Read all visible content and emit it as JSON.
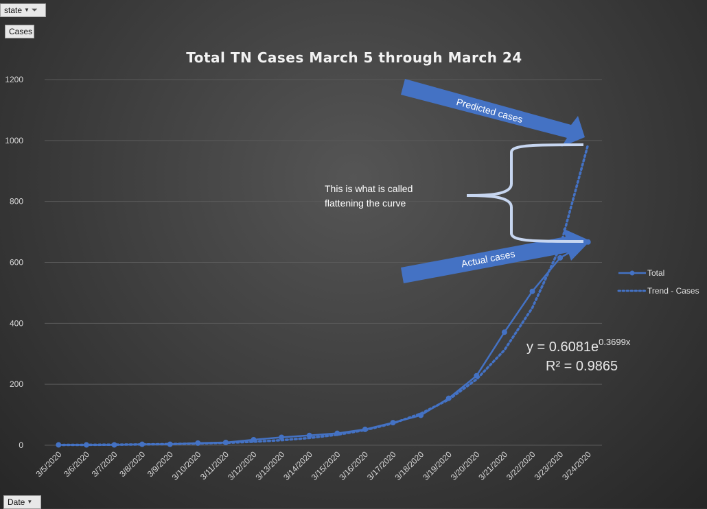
{
  "filters": {
    "state_label": "state",
    "cases_label": "Cases",
    "date_label": "Date"
  },
  "colors": {
    "series": "#4472c4",
    "arrow": "#4472c4",
    "grid": "#5a5a5a"
  },
  "chart_data": {
    "type": "line",
    "title": "Total TN Cases March 5 through March 24",
    "xlabel": "",
    "ylabel": "",
    "categories": [
      "3/5/2020",
      "3/6/2020",
      "3/7/2020",
      "3/8/2020",
      "3/9/2020",
      "3/10/2020",
      "3/11/2020",
      "3/12/2020",
      "3/13/2020",
      "3/14/2020",
      "3/15/2020",
      "3/16/2020",
      "3/17/2020",
      "3/18/2020",
      "3/19/2020",
      "3/20/2020",
      "3/21/2020",
      "3/22/2020",
      "3/23/2020",
      "3/24/2020"
    ],
    "ylim": [
      0,
      1200
    ],
    "yticks": [
      0,
      200,
      400,
      600,
      800,
      1000,
      1200
    ],
    "grid": true,
    "legend_position": "right",
    "series": [
      {
        "name": "Total",
        "style": "solid-markers",
        "values": [
          1,
          1,
          1,
          3,
          3,
          7,
          9,
          18,
          26,
          32,
          39,
          52,
          74,
          98,
          154,
          228,
          371,
          505,
          615,
          667
        ]
      },
      {
        "name": "Trend - Cases",
        "style": "dotted",
        "values": [
          0.9,
          1.3,
          1.8,
          2.6,
          3.8,
          5.5,
          7.9,
          11.4,
          16.5,
          23.8,
          34.4,
          49.7,
          71.8,
          103.7,
          149.7,
          216.2,
          312.3,
          450.9,
          651.1,
          987
        ]
      }
    ],
    "annotations": {
      "predicted_label": "Predicted cases",
      "actual_label": "Actual cases",
      "brace_line1": "This is what is called",
      "brace_line2": "flattening the curve",
      "equation_base": "y = 0.6081e",
      "equation_exp": "0.3699x",
      "r_squared": "R² = 0.9865"
    }
  }
}
